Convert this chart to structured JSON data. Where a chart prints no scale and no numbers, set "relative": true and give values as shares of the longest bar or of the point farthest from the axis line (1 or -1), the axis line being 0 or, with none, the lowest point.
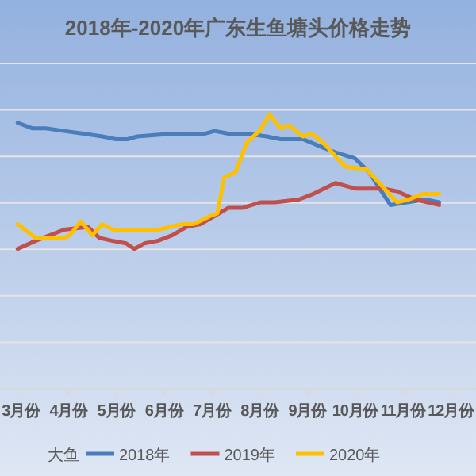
{
  "chart_data": {
    "type": "line",
    "title": "2018年-2020年广东生鱼塘头价格走势",
    "relative": true,
    "grid": "y",
    "legend": "bottom",
    "legend_title": "大鱼",
    "marker": "none",
    "line_style": "solid",
    "xlim": [
      2.57,
      12.53
    ],
    "xticks": [
      {
        "value": 3,
        "label": "3月份"
      },
      {
        "value": 4,
        "label": "4月份"
      },
      {
        "value": 5,
        "label": "5月份"
      },
      {
        "value": 6,
        "label": "6月份"
      },
      {
        "value": 7,
        "label": "7月份"
      },
      {
        "value": 8,
        "label": "8月份"
      },
      {
        "value": 9,
        "label": "9月份"
      },
      {
        "value": 10,
        "label": "10月份"
      },
      {
        "value": 11,
        "label": "11月份"
      },
      {
        "value": 12,
        "label": "12月份"
      }
    ],
    "series": [
      {
        "name": "2018年",
        "color": "#4a7ebb",
        "x": [
          2.94,
          3.24,
          3.53,
          3.91,
          4.32,
          4.71,
          5.0,
          5.24,
          5.44,
          6.18,
          6.85,
          7.06,
          7.35,
          7.74,
          8.15,
          8.44,
          8.91,
          9.32,
          9.62,
          10.0,
          10.29,
          10.74,
          11.09,
          11.47,
          11.76
        ],
        "values": [
          0.97,
          0.95,
          0.95,
          0.94,
          0.93,
          0.92,
          0.91,
          0.91,
          0.92,
          0.93,
          0.93,
          0.94,
          0.93,
          0.93,
          0.92,
          0.91,
          0.91,
          0.88,
          0.86,
          0.84,
          0.79,
          0.67,
          0.68,
          0.69,
          0.68
        ]
      },
      {
        "name": "2019年",
        "color": "#c0504d",
        "x": [
          2.94,
          3.32,
          3.62,
          3.91,
          4.41,
          4.65,
          4.91,
          5.21,
          5.38,
          5.59,
          5.88,
          6.18,
          6.47,
          6.76,
          7.06,
          7.35,
          7.65,
          8.03,
          8.32,
          8.82,
          9.12,
          9.59,
          10.0,
          10.59,
          10.88,
          11.26,
          11.76
        ],
        "values": [
          0.51,
          0.54,
          0.56,
          0.58,
          0.59,
          0.55,
          0.54,
          0.53,
          0.51,
          0.53,
          0.54,
          0.56,
          0.59,
          0.6,
          0.63,
          0.66,
          0.66,
          0.68,
          0.68,
          0.69,
          0.71,
          0.75,
          0.73,
          0.73,
          0.72,
          0.69,
          0.67
        ]
      },
      {
        "name": "2020年",
        "color": "#ffc000",
        "x": [
          2.94,
          3.32,
          3.91,
          4.03,
          4.26,
          4.5,
          4.71,
          4.94,
          5.88,
          6.38,
          6.62,
          6.97,
          7.12,
          7.26,
          7.5,
          7.74,
          8.0,
          8.21,
          8.44,
          8.62,
          8.91,
          9.09,
          9.32,
          9.79,
          10.24,
          10.88,
          11.12,
          11.41,
          11.76
        ],
        "values": [
          0.6,
          0.55,
          0.55,
          0.56,
          0.61,
          0.56,
          0.6,
          0.58,
          0.58,
          0.6,
          0.6,
          0.63,
          0.64,
          0.77,
          0.79,
          0.9,
          0.94,
          1.0,
          0.95,
          0.96,
          0.92,
          0.93,
          0.9,
          0.81,
          0.8,
          0.68,
          0.69,
          0.71,
          0.71
        ]
      }
    ]
  }
}
